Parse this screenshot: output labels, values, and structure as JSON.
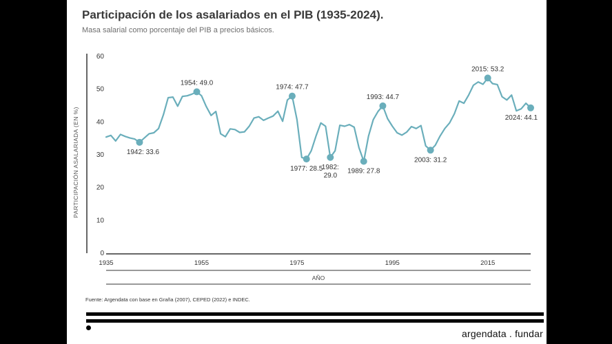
{
  "title": "Participación de los asalariados en el PIB (1935-2024).",
  "subtitle": "Masa salarial como porcentaje del PIB a precios básicos.",
  "source": "Fuente: Argendata con base en Graña (2007), CEPED (2022) e INDEC.",
  "brand": "argendata . fundar",
  "colors": {
    "line": "#6aaebb",
    "axis": "#333333",
    "text": "#333333"
  },
  "chart_data": {
    "type": "line",
    "xlabel": "AÑO",
    "ylabel": "PARTICIPACIÓN ASALARIADA  (EN %)",
    "xlim": [
      1935,
      2024
    ],
    "ylim": [
      0,
      60
    ],
    "xticks": [
      1935,
      1955,
      1975,
      1995,
      2015
    ],
    "yticks": [
      0,
      10,
      20,
      30,
      40,
      50,
      60
    ],
    "grid": false,
    "x": [
      1935,
      1936,
      1937,
      1938,
      1939,
      1940,
      1941,
      1942,
      1943,
      1944,
      1945,
      1946,
      1947,
      1948,
      1949,
      1950,
      1951,
      1952,
      1953,
      1954,
      1955,
      1956,
      1957,
      1958,
      1959,
      1960,
      1961,
      1962,
      1963,
      1964,
      1965,
      1966,
      1967,
      1968,
      1969,
      1970,
      1971,
      1972,
      1973,
      1974,
      1975,
      1976,
      1977,
      1978,
      1979,
      1980,
      1981,
      1982,
      1983,
      1984,
      1985,
      1986,
      1987,
      1988,
      1989,
      1990,
      1991,
      1992,
      1993,
      1994,
      1995,
      1996,
      1997,
      1998,
      1999,
      2000,
      2001,
      2002,
      2003,
      2004,
      2005,
      2006,
      2007,
      2008,
      2009,
      2010,
      2011,
      2012,
      2013,
      2014,
      2015,
      2016,
      2017,
      2018,
      2019,
      2020,
      2021,
      2022,
      2023,
      2024
    ],
    "y": [
      35.2,
      35.7,
      34.0,
      36.0,
      35.4,
      34.9,
      34.6,
      33.6,
      34.9,
      36.2,
      36.5,
      37.8,
      42.0,
      47.2,
      47.4,
      44.6,
      47.6,
      47.8,
      48.3,
      49.0,
      47.8,
      44.5,
      41.8,
      43.0,
      36.2,
      35.3,
      37.7,
      37.5,
      36.6,
      36.8,
      38.5,
      41.0,
      41.4,
      40.3,
      41.0,
      41.6,
      43.1,
      40.0,
      46.5,
      47.7,
      40.5,
      29.0,
      28.5,
      31.0,
      35.5,
      39.5,
      38.5,
      29.0,
      31.0,
      38.8,
      38.5,
      39.0,
      38.2,
      32.0,
      27.8,
      35.5,
      40.5,
      43.0,
      44.7,
      40.8,
      38.5,
      36.5,
      35.8,
      36.7,
      38.4,
      37.8,
      38.7,
      32.5,
      31.2,
      32.7,
      35.5,
      37.8,
      39.5,
      42.3,
      46.2,
      45.5,
      48.0,
      51.0,
      52.0,
      51.3,
      53.2,
      51.5,
      51.2,
      47.5,
      46.5,
      48.0,
      43.2,
      43.8,
      45.5,
      44.1
    ],
    "highlights": [
      {
        "year": 1942,
        "value": 33.6,
        "label": "1942: 33.6",
        "anchor": "below"
      },
      {
        "year": 1954,
        "value": 49.0,
        "label": "1954: 49.0",
        "anchor": "above"
      },
      {
        "year": 1974,
        "value": 47.7,
        "label": "1974: 47.7",
        "anchor": "above"
      },
      {
        "year": 1977,
        "value": 28.5,
        "label": "1977: 28.5",
        "anchor": "below"
      },
      {
        "year": 1982,
        "value": 29.0,
        "label": "1982:",
        "label2": "29.0",
        "anchor": "below"
      },
      {
        "year": 1989,
        "value": 27.8,
        "label": "1989: 27.8",
        "anchor": "below"
      },
      {
        "year": 1993,
        "value": 44.7,
        "label": "1993: 44.7",
        "anchor": "above"
      },
      {
        "year": 2003,
        "value": 31.2,
        "label": "2003: 31.2",
        "anchor": "below"
      },
      {
        "year": 2015,
        "value": 53.2,
        "label": "2015: 53.2",
        "anchor": "above"
      },
      {
        "year": 2024,
        "value": 44.1,
        "label": "2024: 44.1",
        "anchor": "below"
      }
    ]
  }
}
